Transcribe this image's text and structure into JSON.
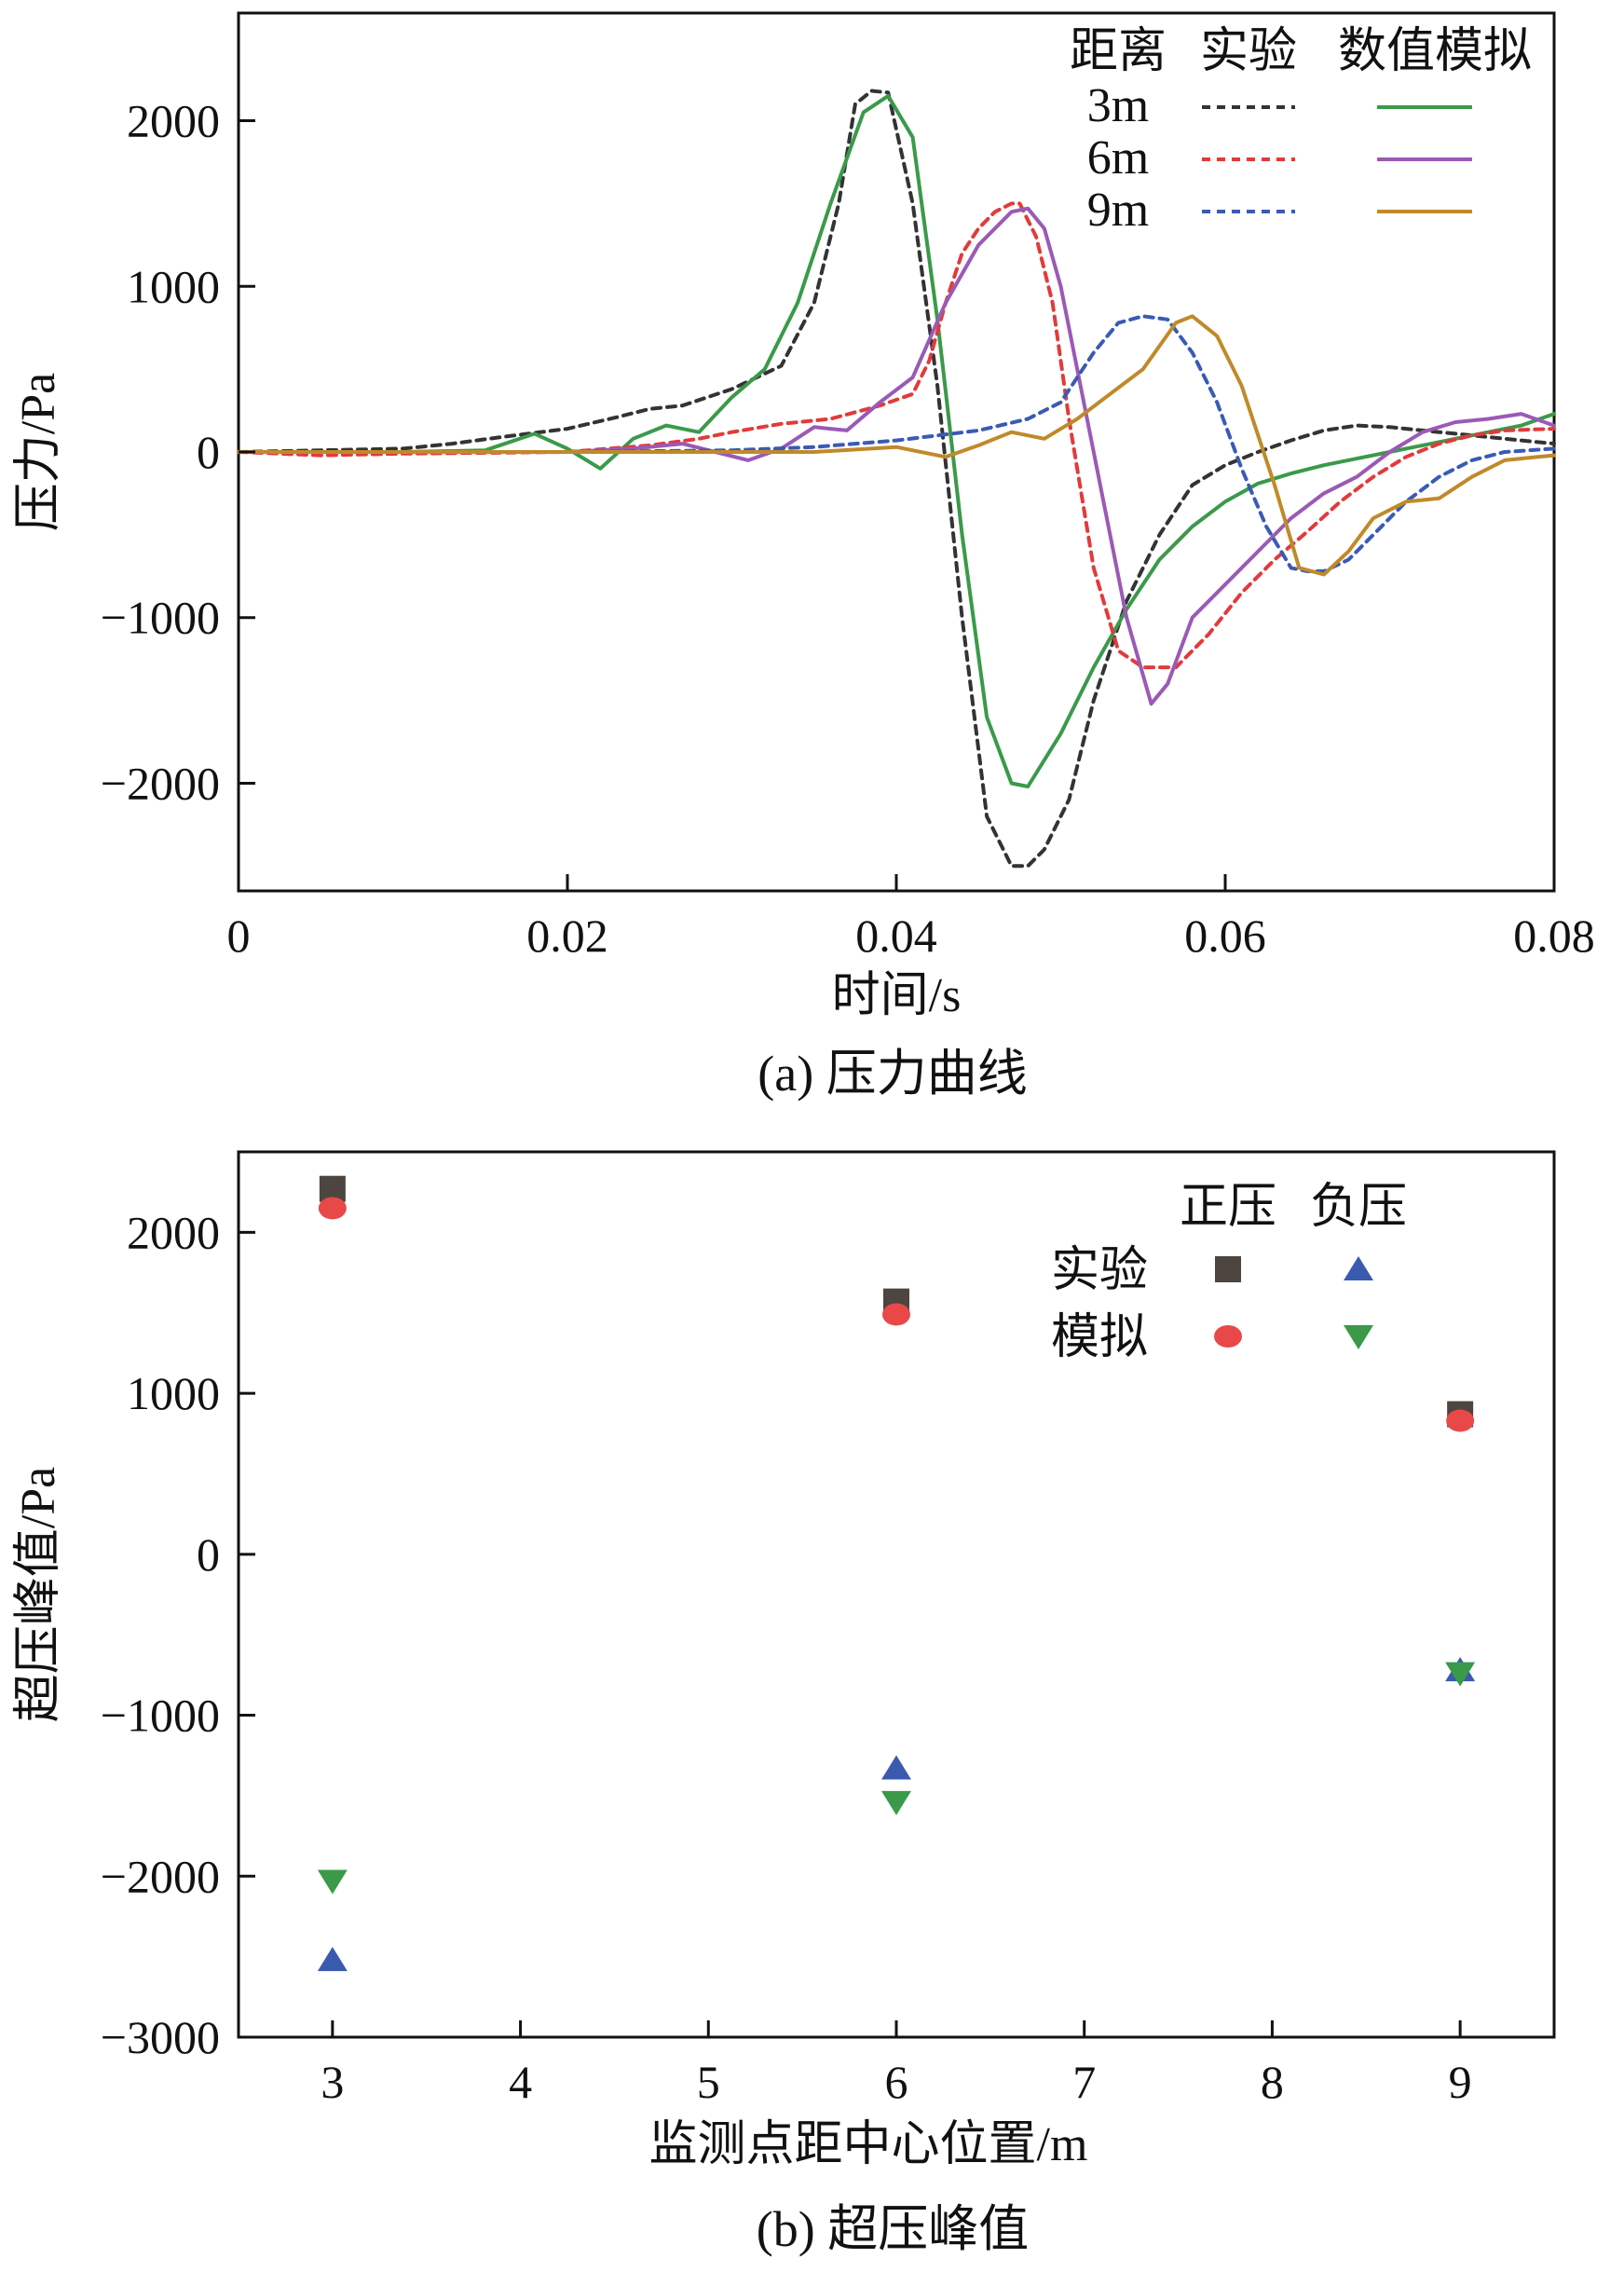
{
  "chart_data": [
    {
      "type": "line",
      "caption": "(a) 压力曲线",
      "xlabel": "时间/s",
      "ylabel": "压力/Pa",
      "xlim": [
        0,
        0.08
      ],
      "ylim": [
        -2650,
        2650
      ],
      "xticks": [
        0,
        0.02,
        0.04,
        0.06,
        0.08
      ],
      "xtick_labels": [
        "0",
        "0.02",
        "0.04",
        "0.06",
        "0.08"
      ],
      "yticks": [
        2000,
        1000,
        0,
        -1000,
        -2000
      ],
      "ytick_labels": [
        "2000",
        "1000",
        "0",
        "−1000",
        "−2000"
      ],
      "legend": {
        "position": "top-right",
        "headers": [
          "距离",
          "实验",
          "数值模拟"
        ],
        "rows": [
          "3m",
          "6m",
          "9m"
        ]
      },
      "series": [
        {
          "name": "3m",
          "kind": "实验",
          "style": "dashed",
          "color": "#333333",
          "x": [
            0,
            0.005,
            0.01,
            0.013,
            0.016,
            0.02,
            0.023,
            0.025,
            0.027,
            0.03,
            0.033,
            0.035,
            0.0365,
            0.0375,
            0.0385,
            0.0395,
            0.041,
            0.0425,
            0.044,
            0.0455,
            0.047,
            0.048,
            0.049,
            0.0505,
            0.052,
            0.054,
            0.056,
            0.058,
            0.06,
            0.062,
            0.064,
            0.066,
            0.068,
            0.07,
            0.072,
            0.074,
            0.076,
            0.078,
            0.08
          ],
          "y": [
            0,
            10,
            20,
            50,
            90,
            140,
            210,
            260,
            280,
            380,
            520,
            900,
            1500,
            2100,
            2180,
            2170,
            1500,
            400,
            -1000,
            -2200,
            -2500,
            -2500,
            -2400,
            -2100,
            -1500,
            -900,
            -500,
            -200,
            -80,
            0,
            70,
            130,
            160,
            150,
            130,
            110,
            90,
            70,
            50
          ]
        },
        {
          "name": "3m",
          "kind": "数值模拟",
          "style": "solid",
          "color": "#3a9a4a",
          "x": [
            0,
            0.01,
            0.015,
            0.018,
            0.02,
            0.022,
            0.024,
            0.026,
            0.028,
            0.03,
            0.032,
            0.034,
            0.036,
            0.038,
            0.0395,
            0.041,
            0.0425,
            0.044,
            0.0455,
            0.047,
            0.048,
            0.05,
            0.052,
            0.054,
            0.056,
            0.058,
            0.06,
            0.062,
            0.064,
            0.066,
            0.068,
            0.07,
            0.072,
            0.074,
            0.076,
            0.078,
            0.08
          ],
          "y": [
            0,
            0,
            10,
            110,
            20,
            -100,
            80,
            160,
            120,
            330,
            500,
            900,
            1500,
            2050,
            2150,
            1900,
            800,
            -500,
            -1600,
            -2000,
            -2020,
            -1700,
            -1300,
            -950,
            -650,
            -450,
            -300,
            -190,
            -130,
            -80,
            -40,
            0,
            40,
            80,
            120,
            160,
            230
          ]
        },
        {
          "name": "6m",
          "kind": "实验",
          "style": "dashed",
          "color": "#e23a3a",
          "x": [
            0,
            0.005,
            0.01,
            0.02,
            0.025,
            0.028,
            0.03,
            0.033,
            0.036,
            0.039,
            0.041,
            0.042,
            0.043,
            0.044,
            0.045,
            0.046,
            0.047,
            0.0475,
            0.0485,
            0.0495,
            0.0505,
            0.052,
            0.0535,
            0.055,
            0.057,
            0.059,
            0.061,
            0.063,
            0.065,
            0.067,
            0.069,
            0.071,
            0.073,
            0.075,
            0.077,
            0.08
          ],
          "y": [
            0,
            -20,
            -10,
            0,
            40,
            80,
            120,
            170,
            200,
            280,
            350,
            550,
            900,
            1200,
            1350,
            1450,
            1500,
            1500,
            1300,
            900,
            200,
            -700,
            -1200,
            -1300,
            -1300,
            -1100,
            -850,
            -650,
            -480,
            -300,
            -150,
            -30,
            50,
            100,
            130,
            140
          ]
        },
        {
          "name": "6m",
          "kind": "数值模拟",
          "style": "solid",
          "color": "#9a5ab5",
          "x": [
            0,
            0.01,
            0.02,
            0.024,
            0.027,
            0.029,
            0.031,
            0.033,
            0.035,
            0.037,
            0.039,
            0.041,
            0.043,
            0.045,
            0.047,
            0.048,
            0.049,
            0.05,
            0.052,
            0.054,
            0.0555,
            0.0565,
            0.058,
            0.06,
            0.062,
            0.064,
            0.066,
            0.068,
            0.07,
            0.072,
            0.074,
            0.076,
            0.078,
            0.08
          ],
          "y": [
            0,
            0,
            0,
            20,
            50,
            0,
            -50,
            20,
            150,
            130,
            300,
            450,
            900,
            1250,
            1450,
            1470,
            1350,
            1000,
            0,
            -1000,
            -1520,
            -1400,
            -1000,
            -800,
            -600,
            -400,
            -250,
            -150,
            0,
            120,
            180,
            200,
            230,
            160
          ]
        },
        {
          "name": "9m",
          "kind": "实验",
          "style": "dashed",
          "color": "#3a5ab5",
          "x": [
            0,
            0.01,
            0.02,
            0.03,
            0.035,
            0.04,
            0.045,
            0.048,
            0.05,
            0.052,
            0.0535,
            0.055,
            0.0565,
            0.058,
            0.0595,
            0.061,
            0.0625,
            0.064,
            0.065,
            0.066,
            0.0675,
            0.069,
            0.071,
            0.073,
            0.075,
            0.077,
            0.08
          ],
          "y": [
            0,
            0,
            0,
            10,
            30,
            70,
            130,
            200,
            300,
            600,
            780,
            820,
            800,
            600,
            300,
            -100,
            -450,
            -700,
            -720,
            -720,
            -650,
            -500,
            -300,
            -150,
            -50,
            0,
            20
          ]
        },
        {
          "name": "9m",
          "kind": "数值模拟",
          "style": "solid",
          "color": "#c08a2a",
          "x": [
            0,
            0.01,
            0.02,
            0.03,
            0.035,
            0.04,
            0.043,
            0.045,
            0.047,
            0.049,
            0.051,
            0.053,
            0.055,
            0.057,
            0.058,
            0.0595,
            0.061,
            0.063,
            0.0645,
            0.066,
            0.0675,
            0.069,
            0.071,
            0.073,
            0.075,
            0.077,
            0.079,
            0.08
          ],
          "y": [
            0,
            0,
            0,
            0,
            0,
            30,
            -30,
            40,
            120,
            80,
            200,
            350,
            500,
            780,
            820,
            700,
            400,
            -200,
            -700,
            -740,
            -600,
            -400,
            -300,
            -280,
            -150,
            -50,
            -30,
            -20
          ]
        }
      ]
    },
    {
      "type": "scatter",
      "caption": "(b) 超压峰值",
      "xlabel": "监测点距中心位置/m",
      "ylabel": "超压峰值/Pa",
      "xlim": [
        2.5,
        9.5
      ],
      "ylim": [
        -3000,
        2500
      ],
      "xticks": [
        3,
        4,
        5,
        6,
        7,
        8,
        9
      ],
      "xtick_labels": [
        "3",
        "4",
        "5",
        "6",
        "7",
        "8",
        "9"
      ],
      "yticks": [
        2000,
        1000,
        0,
        -1000,
        -2000,
        -3000
      ],
      "ytick_labels": [
        "2000",
        "1000",
        "0",
        "−1000",
        "−2000",
        "−3000"
      ],
      "legend": {
        "position": "top-right",
        "col_headers": [
          "正压",
          "负压"
        ],
        "row_headers": [
          "实验",
          "模拟"
        ]
      },
      "series": [
        {
          "name": "实验正压",
          "marker": "square",
          "color": "#4d4540",
          "x": [
            3,
            6,
            9
          ],
          "y": [
            2270,
            1570,
            870
          ]
        },
        {
          "name": "模拟正压",
          "marker": "circle",
          "color": "#e84848",
          "x": [
            3,
            6,
            9
          ],
          "y": [
            2150,
            1490,
            830
          ]
        },
        {
          "name": "实验负压",
          "marker": "triangle-up",
          "color": "#3a5ab0",
          "x": [
            3,
            6,
            9
          ],
          "y": [
            -2520,
            -1330,
            -720
          ]
        },
        {
          "name": "模拟负压",
          "marker": "triangle-down",
          "color": "#3a9a4a",
          "x": [
            3,
            6,
            9
          ],
          "y": [
            -2030,
            -1540,
            -740
          ]
        }
      ]
    }
  ]
}
